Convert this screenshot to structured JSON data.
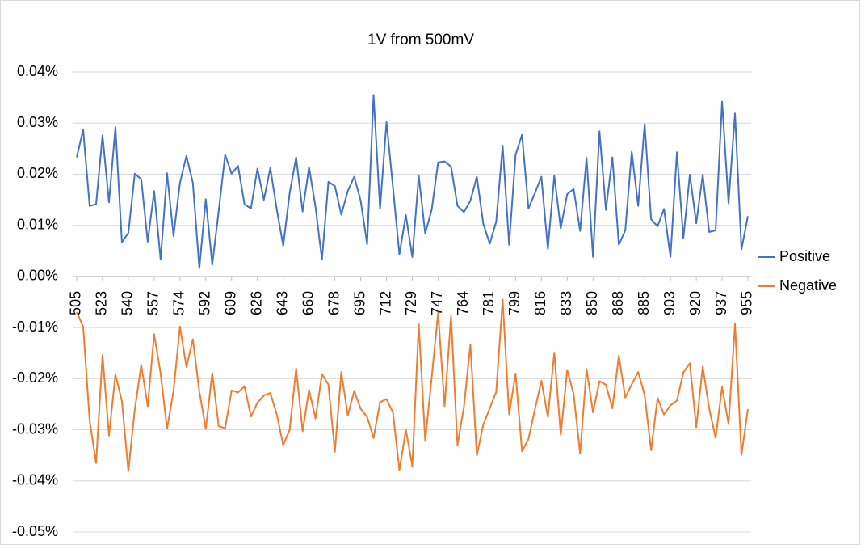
{
  "chart_data": {
    "type": "line",
    "title": "1V from 500mV",
    "categories": [
      "505",
      null,
      null,
      null,
      "523",
      null,
      null,
      null,
      "540",
      null,
      null,
      null,
      "557",
      null,
      null,
      null,
      "574",
      null,
      null,
      null,
      "592",
      null,
      null,
      null,
      "609",
      null,
      null,
      null,
      "626",
      null,
      null,
      null,
      "643",
      null,
      null,
      null,
      "660",
      null,
      null,
      null,
      "678",
      null,
      null,
      null,
      "695",
      null,
      null,
      null,
      "712",
      null,
      null,
      null,
      "729",
      null,
      null,
      null,
      "747",
      null,
      null,
      null,
      "764",
      null,
      null,
      null,
      "781",
      null,
      null,
      null,
      "799",
      null,
      null,
      null,
      "816",
      null,
      null,
      null,
      "833",
      null,
      null,
      null,
      "850",
      null,
      null,
      null,
      "868",
      null,
      null,
      null,
      "885",
      null,
      null,
      null,
      "903",
      null,
      null,
      null,
      "920",
      null,
      null,
      null,
      "937",
      null,
      null,
      null,
      "955"
    ],
    "series": [
      {
        "name": "Positive",
        "color": "#4472c4",
        "values": [
          0.0233,
          0.0287,
          0.0138,
          0.0141,
          0.0276,
          0.0145,
          0.0292,
          0.0067,
          0.0085,
          0.0201,
          0.019,
          0.0068,
          0.0167,
          0.0033,
          0.0202,
          0.0079,
          0.0183,
          0.0236,
          0.0183,
          0.0016,
          0.0151,
          0.0023,
          0.0128,
          0.0238,
          0.0201,
          0.0216,
          0.0141,
          0.0133,
          0.0211,
          0.015,
          0.0212,
          0.0131,
          0.006,
          0.0163,
          0.0233,
          0.0127,
          0.0214,
          0.0136,
          0.0033,
          0.0185,
          0.0177,
          0.0121,
          0.0167,
          0.0195,
          0.0148,
          0.0063,
          0.0355,
          0.0132,
          0.0302,
          0.0175,
          0.0043,
          0.012,
          0.0038,
          0.0197,
          0.0084,
          0.013,
          0.0223,
          0.0225,
          0.0215,
          0.0138,
          0.0126,
          0.0148,
          0.0195,
          0.0103,
          0.0064,
          0.0107,
          0.0256,
          0.0062,
          0.0238,
          0.0277,
          0.0133,
          0.0163,
          0.0195,
          0.0054,
          0.0197,
          0.0094,
          0.0161,
          0.0171,
          0.0089,
          0.0232,
          0.0038,
          0.0284,
          0.013,
          0.0233,
          0.0062,
          0.009,
          0.0244,
          0.0138,
          0.0298,
          0.0112,
          0.0098,
          0.0132,
          0.0038,
          0.0243,
          0.0075,
          0.0199,
          0.0104,
          0.0199,
          0.0087,
          0.009,
          0.0342,
          0.0143,
          0.0319,
          0.0053,
          0.0118
        ]
      },
      {
        "name": "Negative",
        "color": "#ed7d31",
        "values": [
          -0.007,
          -0.0098,
          -0.0282,
          -0.0365,
          -0.0154,
          -0.0311,
          -0.0192,
          -0.0244,
          -0.0381,
          -0.026,
          -0.0173,
          -0.0254,
          -0.0113,
          -0.019,
          -0.0298,
          -0.0224,
          -0.0098,
          -0.0177,
          -0.0123,
          -0.0225,
          -0.0298,
          -0.0189,
          -0.0293,
          -0.0297,
          -0.0223,
          -0.0227,
          -0.0215,
          -0.0274,
          -0.0247,
          -0.0233,
          -0.0228,
          -0.027,
          -0.033,
          -0.03,
          -0.018,
          -0.0303,
          -0.0222,
          -0.0278,
          -0.0191,
          -0.0212,
          -0.0343,
          -0.0187,
          -0.0272,
          -0.0224,
          -0.0259,
          -0.0275,
          -0.0316,
          -0.0246,
          -0.024,
          -0.0266,
          -0.0379,
          -0.03,
          -0.0371,
          -0.0093,
          -0.0322,
          -0.0198,
          -0.0071,
          -0.0254,
          -0.0078,
          -0.033,
          -0.0255,
          -0.0133,
          -0.035,
          -0.029,
          -0.0258,
          -0.0226,
          -0.0045,
          -0.027,
          -0.019,
          -0.0342,
          -0.0318,
          -0.026,
          -0.0204,
          -0.0275,
          -0.0149,
          -0.031,
          -0.0183,
          -0.023,
          -0.0347,
          -0.0181,
          -0.0266,
          -0.0205,
          -0.0212,
          -0.0258,
          -0.0155,
          -0.0237,
          -0.0211,
          -0.0187,
          -0.0232,
          -0.034,
          -0.0238,
          -0.027,
          -0.0252,
          -0.0243,
          -0.0188,
          -0.017,
          -0.0295,
          -0.0176,
          -0.0258,
          -0.0316,
          -0.0216,
          -0.0289,
          -0.0093,
          -0.0349,
          -0.026
        ]
      }
    ],
    "ylim": [
      -0.05,
      0.04
    ],
    "yticks": [
      {
        "value": -0.05,
        "label": "-0.05%"
      },
      {
        "value": -0.04,
        "label": "-0.04%"
      },
      {
        "value": -0.03,
        "label": "-0.03%"
      },
      {
        "value": -0.02,
        "label": "-0.02%"
      },
      {
        "value": -0.01,
        "label": "-0.01%"
      },
      {
        "value": 0,
        "label": "0.00%"
      },
      {
        "value": 0.01,
        "label": "0.01%"
      },
      {
        "value": 0.02,
        "label": "0.02%"
      },
      {
        "value": 0.03,
        "label": "0.03%"
      },
      {
        "value": 0.04,
        "label": "0.04%"
      }
    ],
    "grid": true,
    "legend": "right"
  }
}
